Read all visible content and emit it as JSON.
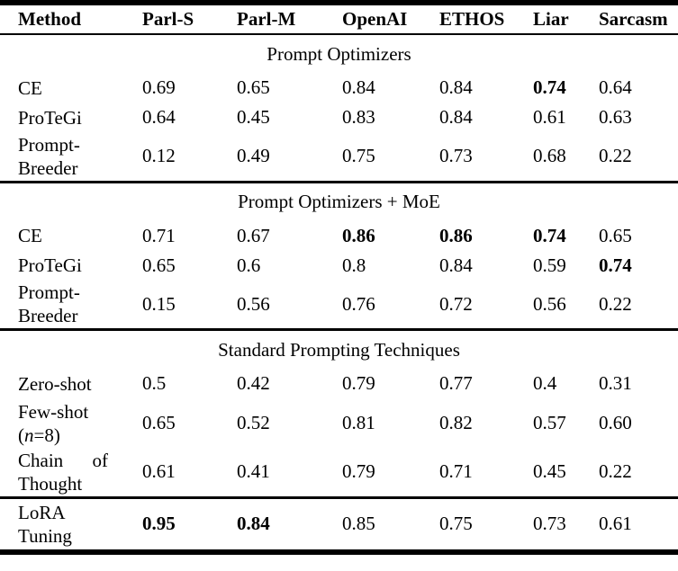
{
  "table": {
    "columns": [
      "Method",
      "Parl-S",
      "Parl-M",
      "OpenAI",
      "ETHOS",
      "Liar",
      "Sarcasm"
    ],
    "sections": [
      {
        "title": "Prompt Optimizers",
        "rule_above": false,
        "rows": [
          {
            "method": "CE",
            "values": [
              "0.69",
              "0.65",
              "0.84",
              "0.84",
              "0.74",
              "0.64"
            ],
            "bold": [
              4
            ]
          },
          {
            "method": "ProTeGi",
            "values": [
              "0.64",
              "0.45",
              "0.83",
              "0.84",
              "0.61",
              "0.63"
            ],
            "bold": []
          },
          {
            "method": "Prompt-Breeder",
            "size": "tall",
            "values": [
              "0.12",
              "0.49",
              "0.75",
              "0.73",
              "0.68",
              "0.22"
            ],
            "bold": []
          }
        ]
      },
      {
        "title": "Prompt Optimizers + MoE",
        "rule_above": true,
        "rows": [
          {
            "method": "CE",
            "values": [
              "0.71",
              "0.67",
              "0.86",
              "0.86",
              "0.74",
              "0.65"
            ],
            "bold": [
              2,
              3,
              4
            ]
          },
          {
            "method": "ProTeGi",
            "values": [
              "0.65",
              "0.6",
              "0.8",
              "0.84",
              "0.59",
              "0.74"
            ],
            "bold": [
              5
            ]
          },
          {
            "method": "Prompt-Breeder",
            "size": "tall",
            "values": [
              "0.15",
              "0.56",
              "0.76",
              "0.72",
              "0.56",
              "0.22"
            ],
            "bold": []
          }
        ]
      },
      {
        "title": "Standard Prompting Techniques",
        "rule_above": true,
        "rows": [
          {
            "method": "Zero-shot",
            "values": [
              "0.5",
              "0.42",
              "0.79",
              "0.77",
              "0.4",
              "0.31"
            ],
            "bold": []
          },
          {
            "method": "Few-shot",
            "method_note": {
              "pre": "(",
              "var": "n",
              "post": "=8)"
            },
            "size": "tall",
            "values": [
              "0.65",
              "0.52",
              "0.81",
              "0.82",
              "0.57",
              "0.60"
            ],
            "bold": []
          },
          {
            "method": "Chain of Thought",
            "size": "tall",
            "values": [
              "0.61",
              "0.41",
              "0.79",
              "0.71",
              "0.45",
              "0.22"
            ],
            "bold": []
          }
        ]
      },
      {
        "title": "",
        "rule_above": true,
        "rows": [
          {
            "method": "LoRA Tuning",
            "size": "xtall",
            "values": [
              "0.95",
              "0.84",
              "0.85",
              "0.75",
              "0.73",
              "0.61"
            ],
            "bold": [
              0,
              1
            ]
          }
        ]
      }
    ]
  }
}
